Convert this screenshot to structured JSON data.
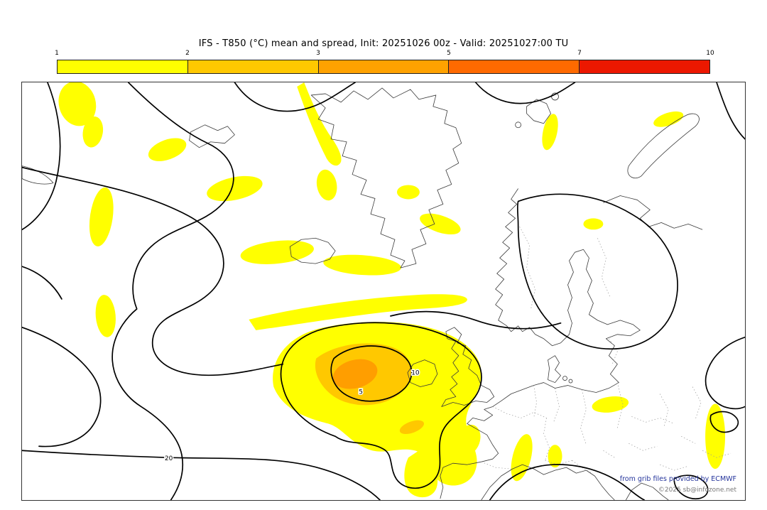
{
  "title": "IFS - T850 (°C) mean and spread, Init: 20251026 00z - Valid: 20251027:00 TU",
  "colorbar": {
    "ticks": [
      "1",
      "2",
      "3",
      "5",
      "7",
      "10"
    ],
    "segments": [
      "#ffff00",
      "#ffc800",
      "#ffa200",
      "#ff6a00",
      "#ec1800"
    ]
  },
  "map": {
    "contour_labels": [
      {
        "text": "20"
      },
      {
        "text": "10"
      },
      {
        "text": "5"
      }
    ],
    "spread_palette": {
      "low": "#ffff00",
      "mid": "#ffc800",
      "high": "#ff9e00"
    }
  },
  "footer": {
    "credit": "from grib files provided by ECMWF",
    "copyright": "©2025 sb@infozone.net"
  },
  "chart_data": {
    "type": "heatmap",
    "title": "IFS - T850 (°C) mean and spread",
    "init": "20251026 00z",
    "valid": "20251027:00 TU",
    "variable": "T850",
    "units": "°C",
    "colorbar": {
      "tick_values": [
        1,
        2,
        3,
        5,
        7,
        10
      ],
      "segment_colors": [
        "#ffff00",
        "#ffc800",
        "#ffa200",
        "#ff6a00",
        "#ec1800"
      ]
    },
    "visible_contour_labels": [
      20,
      10,
      5
    ]
  }
}
